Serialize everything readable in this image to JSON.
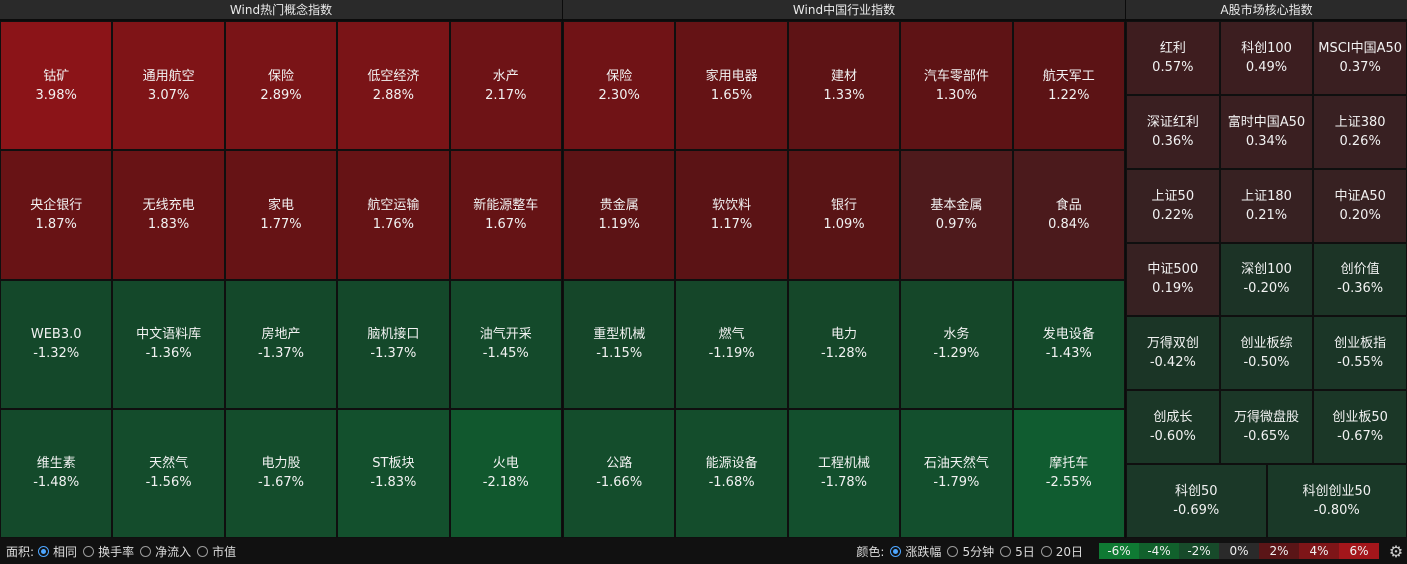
{
  "panels": {
    "concepts": {
      "title": "Wind热门概念指数",
      "rows": [
        [
          {
            "name": "钴矿",
            "pct": "3.98%",
            "color": "#8b1418"
          },
          {
            "name": "通用航空",
            "pct": "3.07%",
            "color": "#7f1417"
          },
          {
            "name": "保险",
            "pct": "2.89%",
            "color": "#7a1417"
          },
          {
            "name": "低空经济",
            "pct": "2.88%",
            "color": "#7a1417"
          },
          {
            "name": "水产",
            "pct": "2.17%",
            "color": "#6e1316"
          }
        ],
        [
          {
            "name": "央企银行",
            "pct": "1.87%",
            "color": "#681315"
          },
          {
            "name": "无线充电",
            "pct": "1.83%",
            "color": "#681315"
          },
          {
            "name": "家电",
            "pct": "1.77%",
            "color": "#661315"
          },
          {
            "name": "航空运输",
            "pct": "1.76%",
            "color": "#661315"
          },
          {
            "name": "新能源整车",
            "pct": "1.67%",
            "color": "#651315"
          }
        ],
        [
          {
            "name": "WEB3.0",
            "pct": "-1.32%",
            "color": "#14482a"
          },
          {
            "name": "中文语料库",
            "pct": "-1.36%",
            "color": "#14482a"
          },
          {
            "name": "房地产",
            "pct": "-1.37%",
            "color": "#14482a"
          },
          {
            "name": "脑机接口",
            "pct": "-1.37%",
            "color": "#14482a"
          },
          {
            "name": "油气开采",
            "pct": "-1.45%",
            "color": "#144a2b"
          }
        ],
        [
          {
            "name": "维生素",
            "pct": "-1.48%",
            "color": "#144a2b"
          },
          {
            "name": "天然气",
            "pct": "-1.56%",
            "color": "#144c2c"
          },
          {
            "name": "电力股",
            "pct": "-1.67%",
            "color": "#144d2c"
          },
          {
            "name": "ST板块",
            "pct": "-1.83%",
            "color": "#13502d"
          },
          {
            "name": "火电",
            "pct": "-2.18%",
            "color": "#11582e"
          }
        ]
      ]
    },
    "industry": {
      "title": "Wind中国行业指数",
      "rows": [
        [
          {
            "name": "保险",
            "pct": "2.30%",
            "color": "#701316"
          },
          {
            "name": "家用电器",
            "pct": "1.65%",
            "color": "#651315"
          },
          {
            "name": "建材",
            "pct": "1.33%",
            "color": "#5e1315"
          },
          {
            "name": "汽车零部件",
            "pct": "1.30%",
            "color": "#5e1315"
          },
          {
            "name": "航天军工",
            "pct": "1.22%",
            "color": "#5c1315"
          }
        ],
        [
          {
            "name": "贵金属",
            "pct": "1.19%",
            "color": "#5c1315"
          },
          {
            "name": "软饮料",
            "pct": "1.17%",
            "color": "#5b1315"
          },
          {
            "name": "银行",
            "pct": "1.09%",
            "color": "#591415"
          },
          {
            "name": "基本金属",
            "pct": "0.97%",
            "color": "#4e1a1c"
          },
          {
            "name": "食品",
            "pct": "0.84%",
            "color": "#4b1a1c"
          }
        ],
        [
          {
            "name": "重型机械",
            "pct": "-1.15%",
            "color": "#154629"
          },
          {
            "name": "燃气",
            "pct": "-1.19%",
            "color": "#154629"
          },
          {
            "name": "电力",
            "pct": "-1.28%",
            "color": "#154729"
          },
          {
            "name": "水务",
            "pct": "-1.29%",
            "color": "#154729"
          },
          {
            "name": "发电设备",
            "pct": "-1.43%",
            "color": "#14492a"
          }
        ],
        [
          {
            "name": "公路",
            "pct": "-1.66%",
            "color": "#144d2c"
          },
          {
            "name": "能源设备",
            "pct": "-1.68%",
            "color": "#144d2c"
          },
          {
            "name": "工程机械",
            "pct": "-1.78%",
            "color": "#134f2d"
          },
          {
            "name": "石油天然气",
            "pct": "-1.79%",
            "color": "#134f2d"
          },
          {
            "name": "摩托车",
            "pct": "-2.55%",
            "color": "#105c30"
          }
        ]
      ]
    },
    "core": {
      "title": "A股市场核心指数",
      "rows": [
        [
          {
            "name": "红利",
            "pct": "0.57%",
            "color": "#3e1d1f"
          },
          {
            "name": "科创100",
            "pct": "0.49%",
            "color": "#3c1e20"
          },
          {
            "name": "MSCI中国A50",
            "pct": "0.37%",
            "color": "#3a1f21"
          }
        ],
        [
          {
            "name": "深证红利",
            "pct": "0.36%",
            "color": "#3a1f21"
          },
          {
            "name": "富时中国A50",
            "pct": "0.34%",
            "color": "#3a1f21"
          },
          {
            "name": "上证380",
            "pct": "0.26%",
            "color": "#382022"
          }
        ],
        [
          {
            "name": "上证50",
            "pct": "0.22%",
            "color": "#372122"
          },
          {
            "name": "上证180",
            "pct": "0.21%",
            "color": "#372122"
          },
          {
            "name": "中证A50",
            "pct": "0.20%",
            "color": "#372122"
          }
        ],
        [
          {
            "name": "中证500",
            "pct": "0.19%",
            "color": "#372122"
          },
          {
            "name": "深创100",
            "pct": "-0.20%",
            "color": "#1c3326"
          },
          {
            "name": "创价值",
            "pct": "-0.36%",
            "color": "#1c3426"
          }
        ],
        [
          {
            "name": "万得双创",
            "pct": "-0.42%",
            "color": "#1b3526"
          },
          {
            "name": "创业板综",
            "pct": "-0.50%",
            "color": "#1b3627"
          },
          {
            "name": "创业板指",
            "pct": "-0.55%",
            "color": "#1b3627"
          }
        ],
        [
          {
            "name": "创成长",
            "pct": "-0.60%",
            "color": "#1b3727"
          },
          {
            "name": "万得微盘股",
            "pct": "-0.65%",
            "color": "#1b3727"
          },
          {
            "name": "创业板50",
            "pct": "-0.67%",
            "color": "#1b3727"
          }
        ],
        [
          {
            "name": "科创50",
            "pct": "-0.69%",
            "color": "#1b3828"
          },
          {
            "name": "科创创业50",
            "pct": "-0.80%",
            "color": "#1a3928"
          }
        ]
      ]
    }
  },
  "bottom": {
    "area_label": "面积:",
    "area_options": [
      {
        "label": "相同",
        "selected": true
      },
      {
        "label": "换手率",
        "selected": false
      },
      {
        "label": "净流入",
        "selected": false
      },
      {
        "label": "市值",
        "selected": false
      }
    ],
    "color_label": "颜色:",
    "color_options": [
      {
        "label": "涨跌幅",
        "selected": true
      },
      {
        "label": "5分钟",
        "selected": false
      },
      {
        "label": "5日",
        "selected": false
      },
      {
        "label": "20日",
        "selected": false
      }
    ],
    "legend": [
      {
        "label": "-6%",
        "color": "#0f7a33"
      },
      {
        "label": "-4%",
        "color": "#11612c"
      },
      {
        "label": "-2%",
        "color": "#174a2a"
      },
      {
        "label": "0%",
        "color": "#2a2a2a"
      },
      {
        "label": "2%",
        "color": "#5a1517"
      },
      {
        "label": "4%",
        "color": "#7e1518"
      },
      {
        "label": "6%",
        "color": "#a3161b"
      }
    ],
    "settings_icon": "gear-icon"
  }
}
